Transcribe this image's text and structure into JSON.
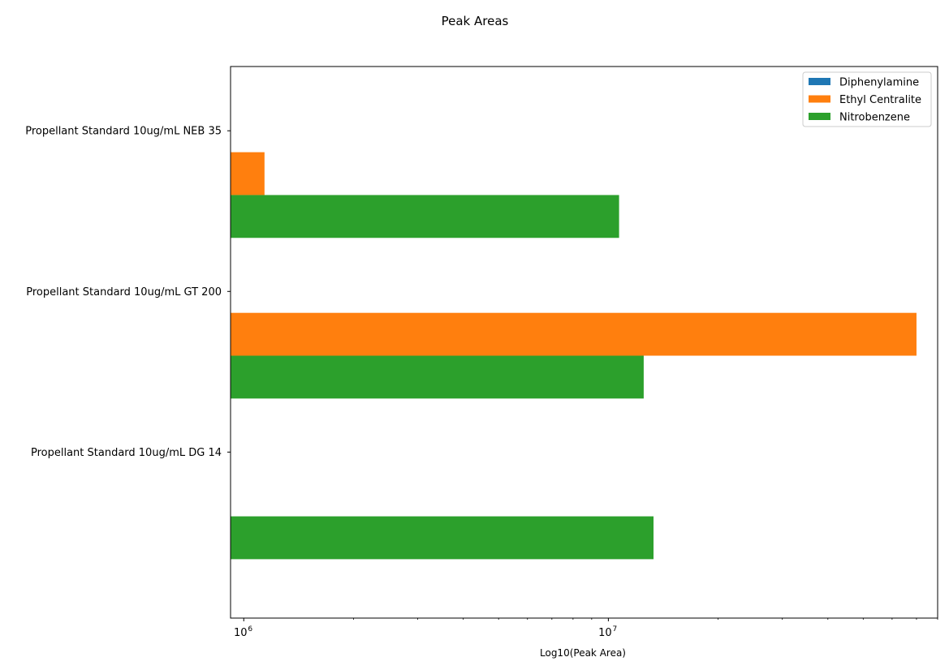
{
  "chart_data": {
    "type": "bar",
    "orientation": "horizontal",
    "title": "Peak Areas",
    "xlabel": "Log10(Peak Area)",
    "ylabel": "",
    "x_scale": "log",
    "xlim": [
      920000,
      80000000
    ],
    "x_major_ticks": [
      {
        "value": 1000000,
        "base": "10",
        "exponent": "6"
      },
      {
        "value": 10000000,
        "base": "10",
        "exponent": "7"
      }
    ],
    "categories": [
      "Propellant Standard 10ug/mL NEB 35",
      "Propellant Standard 10ug/mL GT 200",
      "Propellant Standard 10ug/mL DG 14"
    ],
    "series": [
      {
        "name": "Diphenylamine",
        "color": "#1f77b4",
        "values": [
          null,
          null,
          null
        ]
      },
      {
        "name": "Ethyl Centralite",
        "color": "#ff7f0e",
        "values": [
          1140000,
          70000000,
          null
        ]
      },
      {
        "name": "Nitrobenzene",
        "color": "#2ca02c",
        "values": [
          10700000,
          12500000,
          13300000
        ]
      }
    ],
    "legend": {
      "position": "top-right"
    },
    "grid": false
  }
}
